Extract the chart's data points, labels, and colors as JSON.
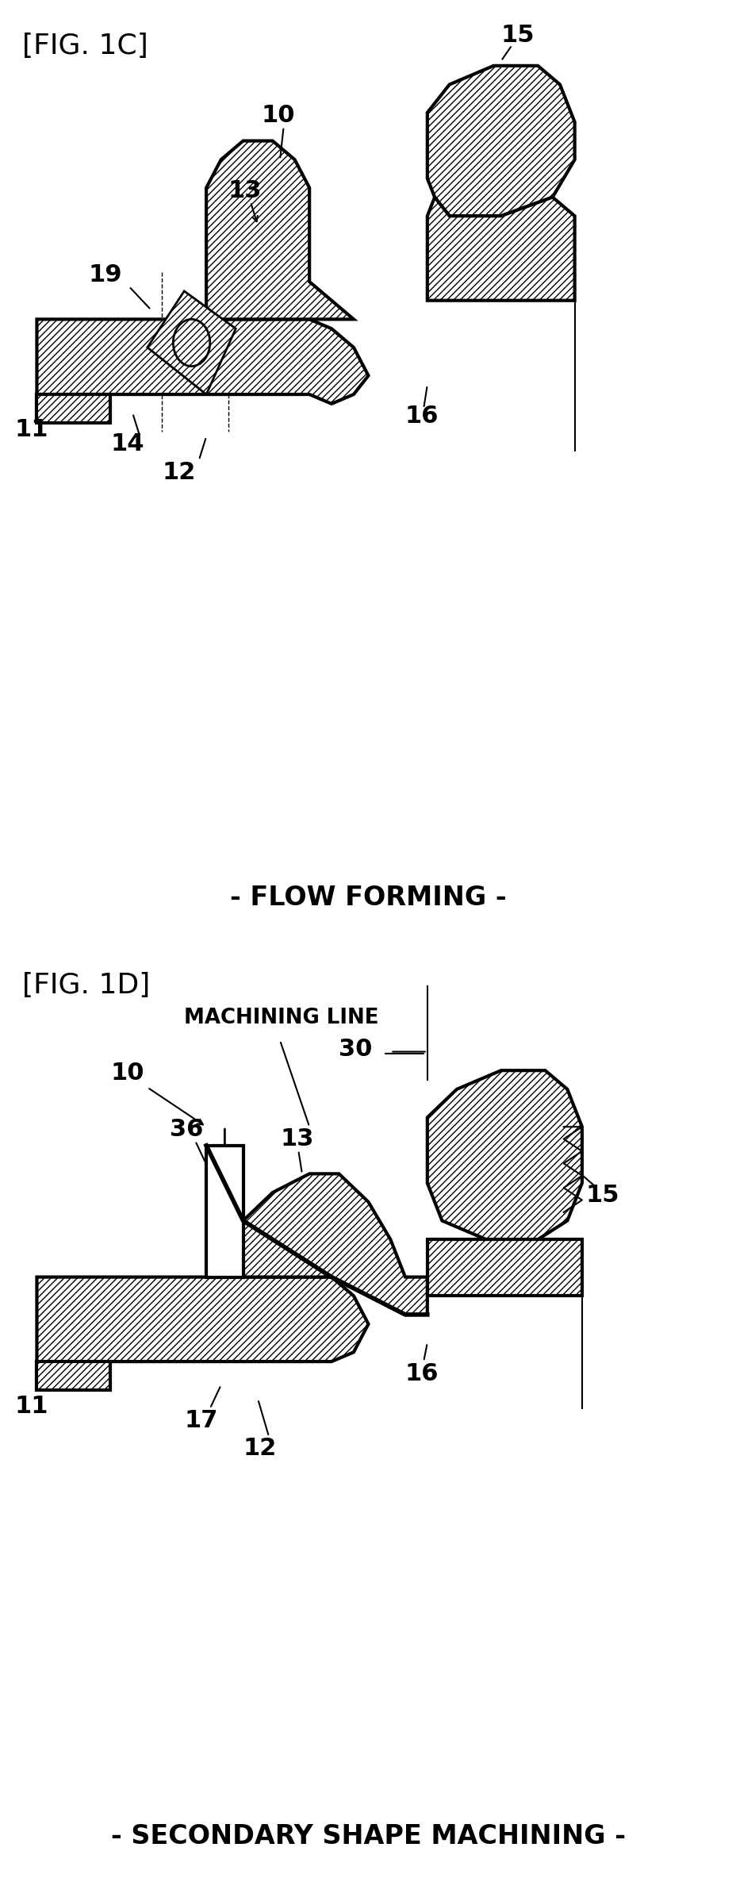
{
  "fig_title_1c": "[FIG. 1C]",
  "fig_title_1d": "[FIG. 1D]",
  "subtitle_1c": "- FLOW FORMING -",
  "subtitle_1d": "- SECONDARY SHAPE MACHINING -",
  "machining_line_label": "MACHINING LINE",
  "bg_color": "#ffffff",
  "line_color": "#000000",
  "hatch_color": "#000000",
  "label_fontsize": 22,
  "title_fontsize": 26,
  "subtitle_fontsize": 24
}
